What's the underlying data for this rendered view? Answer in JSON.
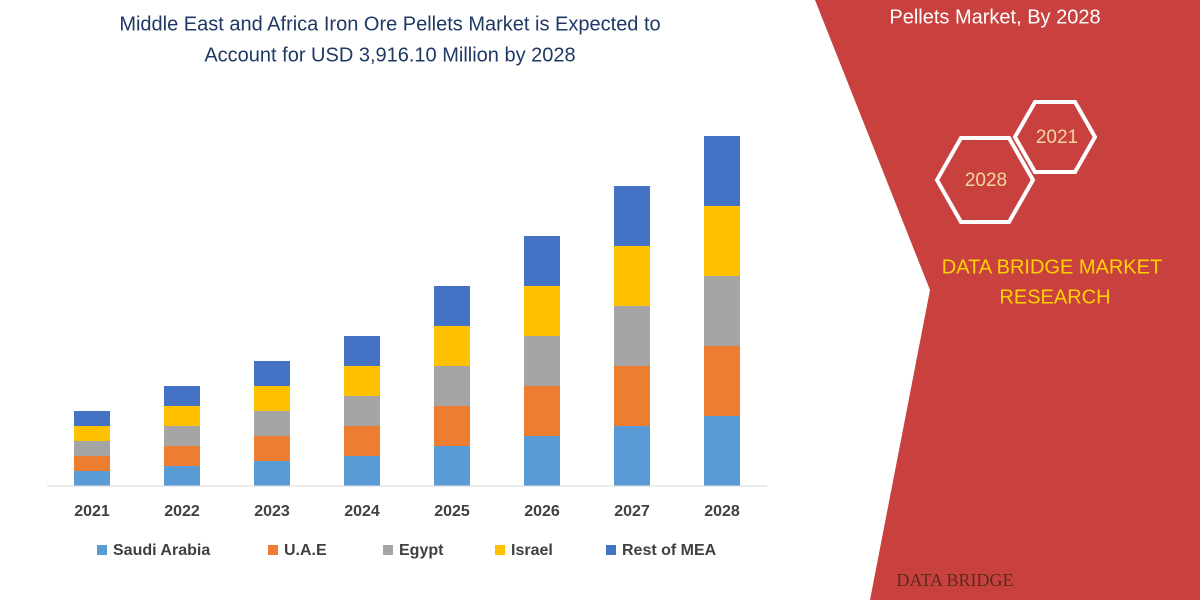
{
  "chart_data": {
    "type": "stacked-bar",
    "title": [
      "Middle East and Africa Iron Ore Pellets Market is Expected to",
      "Account for USD 3,916.10 Million by 2028"
    ],
    "categories": [
      "2021",
      "2022",
      "2023",
      "2024",
      "2025",
      "2026",
      "2027",
      "2028"
    ],
    "series": [
      {
        "name": "Saudi Arabia",
        "color": "#5b9bd5",
        "values": [
          15,
          20,
          25,
          30,
          40,
          50,
          60,
          70
        ]
      },
      {
        "name": "U.A.E",
        "color": "#ed7d31",
        "values": [
          15,
          20,
          25,
          30,
          40,
          50,
          60,
          70
        ]
      },
      {
        "name": "Egypt",
        "color": "#a5a5a5",
        "values": [
          15,
          20,
          25,
          30,
          40,
          50,
          60,
          70
        ]
      },
      {
        "name": "Israel",
        "color": "#ffc000",
        "values": [
          15,
          20,
          25,
          30,
          40,
          50,
          60,
          70
        ]
      },
      {
        "name": "Rest of MEA",
        "color": "#4472c4",
        "values": [
          15,
          20,
          25,
          30,
          40,
          50,
          60,
          70
        ]
      }
    ],
    "ylim": [
      0,
      360
    ]
  },
  "panel": {
    "heading": "Pellets Market, By 2028",
    "hexagons": [
      "2021",
      "2028"
    ],
    "brand": [
      "DATA BRIDGE MARKET",
      "RESEARCH"
    ],
    "logo": "DATA BRIDGE"
  }
}
